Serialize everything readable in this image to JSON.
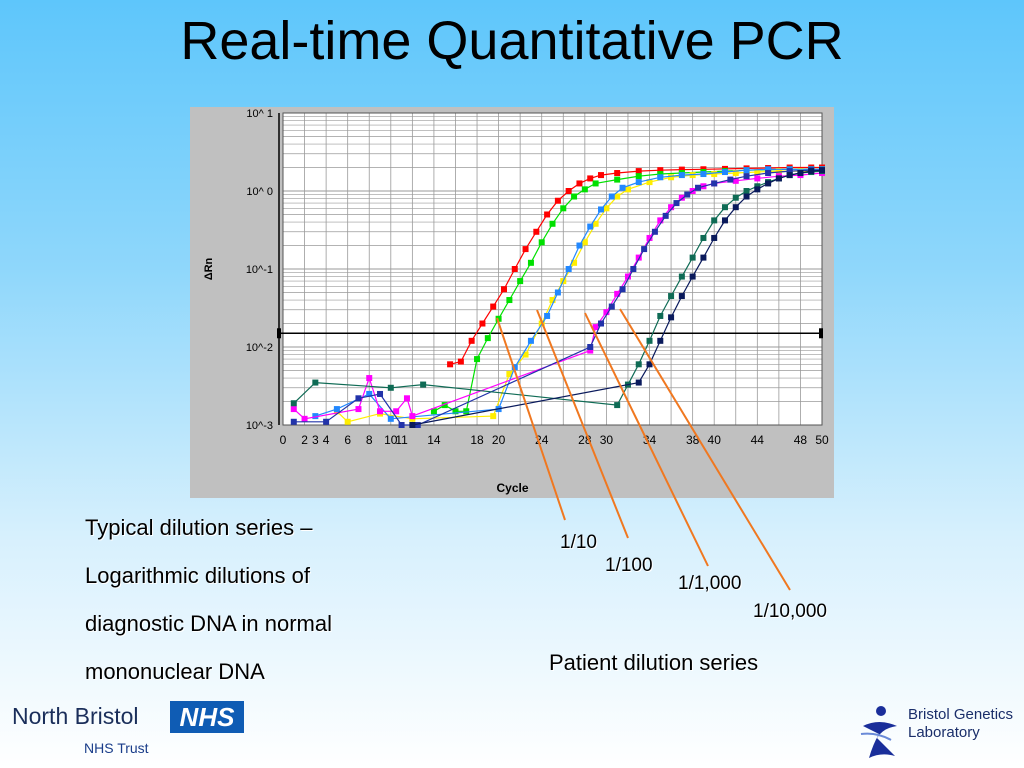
{
  "slide": {
    "title": "Real-time Quantitative PCR",
    "caption_lines": [
      "Typical dilution series –",
      "Logarithmic dilutions of",
      "diagnostic DNA in normal",
      "mononuclear DNA"
    ],
    "dilution_labels": [
      "1/10",
      "1/100",
      "1/1,000",
      "1/10,000"
    ],
    "patient_label": "Patient dilution series",
    "footer": {
      "left_name": "North Bristol",
      "left_badge": "NHS",
      "left_sub": "NHS Trust",
      "right_line1": "Bristol Genetics",
      "right_line2": "Laboratory"
    }
  },
  "colors": {
    "leader_lines": "#f07820",
    "plot_background": "#ffffff",
    "panel_background": "#c0c0c0"
  },
  "chart_data": {
    "type": "line",
    "title": "",
    "xlabel": "Cycle",
    "ylabel": "ΔRn",
    "x_ticks": [
      0,
      2,
      3,
      4,
      6,
      8,
      10,
      11,
      14,
      18,
      20,
      24,
      28,
      30,
      34,
      38,
      40,
      44,
      48,
      50
    ],
    "y_ticks": [
      "10^-3",
      "10^-2",
      "10^-1",
      "10^ 0",
      "10^ 1"
    ],
    "y_scale": "log",
    "xlim": [
      0,
      50
    ],
    "ylim": [
      0.001,
      10
    ],
    "grid": true,
    "threshold": 0.015,
    "series": [
      {
        "color": "#ff0000",
        "points": [
          [
            15.5,
            0.006
          ],
          [
            16.5,
            0.0065
          ],
          [
            17.5,
            0.012
          ],
          [
            18.5,
            0.02
          ],
          [
            19.5,
            0.033
          ],
          [
            20.5,
            0.055
          ],
          [
            21.5,
            0.1
          ],
          [
            22.5,
            0.18
          ],
          [
            23.5,
            0.3
          ],
          [
            24.5,
            0.5
          ],
          [
            25.5,
            0.75
          ],
          [
            26.5,
            1.0
          ],
          [
            27.5,
            1.25
          ],
          [
            28.5,
            1.45
          ],
          [
            29.5,
            1.6
          ],
          [
            31,
            1.7
          ],
          [
            33,
            1.8
          ],
          [
            35,
            1.85
          ],
          [
            37,
            1.88
          ],
          [
            39,
            1.9
          ],
          [
            41,
            1.92
          ],
          [
            43,
            1.95
          ],
          [
            45,
            1.97
          ],
          [
            47,
            2.0
          ],
          [
            49,
            2.0
          ],
          [
            50,
            2.0
          ]
        ]
      },
      {
        "color": "#00e000",
        "points": [
          [
            14,
            0.0015
          ],
          [
            15,
            0.0018
          ],
          [
            16,
            0.0015
          ],
          [
            17,
            0.0015
          ],
          [
            18,
            0.007
          ],
          [
            19,
            0.013
          ],
          [
            20,
            0.023
          ],
          [
            21,
            0.04
          ],
          [
            22,
            0.07
          ],
          [
            23,
            0.12
          ],
          [
            24,
            0.22
          ],
          [
            25,
            0.38
          ],
          [
            26,
            0.6
          ],
          [
            27,
            0.85
          ],
          [
            28,
            1.05
          ],
          [
            29,
            1.25
          ],
          [
            31,
            1.4
          ],
          [
            33,
            1.55
          ],
          [
            35,
            1.65
          ],
          [
            37,
            1.7
          ],
          [
            39,
            1.75
          ],
          [
            41,
            1.8
          ],
          [
            43,
            1.85
          ],
          [
            45,
            1.87
          ],
          [
            47,
            1.9
          ],
          [
            49,
            1.9
          ],
          [
            50,
            1.9
          ]
        ]
      },
      {
        "color": "#ffee00",
        "points": [
          [
            5,
            0.0015
          ],
          [
            6,
            0.0011
          ],
          [
            9,
            0.0014
          ],
          [
            12,
            0.0012
          ],
          [
            19.5,
            0.0013
          ],
          [
            21,
            0.0045
          ],
          [
            22.5,
            0.008
          ],
          [
            24,
            0.02
          ],
          [
            25,
            0.04
          ],
          [
            26,
            0.07
          ],
          [
            27,
            0.12
          ],
          [
            28,
            0.22
          ],
          [
            29,
            0.38
          ],
          [
            30,
            0.6
          ],
          [
            31,
            0.85
          ],
          [
            32,
            1.05
          ],
          [
            34,
            1.3
          ],
          [
            36,
            1.5
          ],
          [
            38,
            1.6
          ],
          [
            40,
            1.65
          ],
          [
            42,
            1.7
          ],
          [
            44,
            1.75
          ],
          [
            46,
            1.8
          ],
          [
            48,
            1.8
          ],
          [
            50,
            1.8
          ]
        ]
      },
      {
        "color": "#2288ff",
        "points": [
          [
            3,
            0.0013
          ],
          [
            5,
            0.0016
          ],
          [
            8,
            0.0025
          ],
          [
            10,
            0.0012
          ],
          [
            20,
            0.0016
          ],
          [
            21.5,
            0.0055
          ],
          [
            23,
            0.012
          ],
          [
            24.5,
            0.025
          ],
          [
            25.5,
            0.05
          ],
          [
            26.5,
            0.1
          ],
          [
            27.5,
            0.2
          ],
          [
            28.5,
            0.35
          ],
          [
            29.5,
            0.58
          ],
          [
            30.5,
            0.85
          ],
          [
            31.5,
            1.1
          ],
          [
            33,
            1.3
          ],
          [
            35,
            1.5
          ],
          [
            37,
            1.6
          ],
          [
            39,
            1.65
          ],
          [
            41,
            1.75
          ],
          [
            43,
            1.85
          ],
          [
            45,
            1.9
          ],
          [
            47,
            1.9
          ],
          [
            49,
            1.9
          ],
          [
            50,
            1.9
          ]
        ]
      },
      {
        "color": "#ff00ff",
        "points": [
          [
            1,
            0.0016
          ],
          [
            2,
            0.0012
          ],
          [
            7,
            0.0016
          ],
          [
            8,
            0.004
          ],
          [
            9,
            0.0015
          ],
          [
            10.5,
            0.0015
          ],
          [
            11.5,
            0.0022
          ],
          [
            12,
            0.0013
          ],
          [
            28.5,
            0.009
          ],
          [
            29,
            0.018
          ],
          [
            30,
            0.028
          ],
          [
            31,
            0.048
          ],
          [
            32,
            0.08
          ],
          [
            33,
            0.14
          ],
          [
            34,
            0.25
          ],
          [
            35,
            0.42
          ],
          [
            36,
            0.62
          ],
          [
            37,
            0.82
          ],
          [
            38,
            1.0
          ],
          [
            39,
            1.15
          ],
          [
            40,
            1.25
          ],
          [
            42,
            1.35
          ],
          [
            44,
            1.45
          ],
          [
            46,
            1.55
          ],
          [
            48,
            1.6
          ],
          [
            50,
            1.7
          ]
        ]
      },
      {
        "color": "#2233aa",
        "points": [
          [
            1,
            0.0011
          ],
          [
            4,
            0.0011
          ],
          [
            7,
            0.0022
          ],
          [
            9,
            0.0025
          ],
          [
            11,
            0.001
          ],
          [
            12.5,
            0.001
          ],
          [
            28.5,
            0.01
          ],
          [
            29.5,
            0.02
          ],
          [
            30.5,
            0.033
          ],
          [
            31.5,
            0.055
          ],
          [
            32.5,
            0.1
          ],
          [
            33.5,
            0.18
          ],
          [
            34.5,
            0.3
          ],
          [
            35.5,
            0.48
          ],
          [
            36.5,
            0.7
          ],
          [
            37.5,
            0.9
          ],
          [
            38.5,
            1.1
          ],
          [
            40,
            1.25
          ],
          [
            41.5,
            1.4
          ],
          [
            43,
            1.55
          ],
          [
            45,
            1.7
          ],
          [
            47,
            1.8
          ],
          [
            49,
            1.85
          ],
          [
            50,
            1.85
          ]
        ]
      },
      {
        "color": "#0f6b55",
        "points": [
          [
            1,
            0.0019
          ],
          [
            3,
            0.0035
          ],
          [
            10,
            0.003
          ],
          [
            13,
            0.0033
          ],
          [
            31,
            0.0018
          ],
          [
            32,
            0.0033
          ],
          [
            33,
            0.006
          ],
          [
            34,
            0.012
          ],
          [
            35,
            0.025
          ],
          [
            36,
            0.045
          ],
          [
            37,
            0.08
          ],
          [
            38,
            0.14
          ],
          [
            39,
            0.25
          ],
          [
            40,
            0.42
          ],
          [
            41,
            0.62
          ],
          [
            42,
            0.82
          ],
          [
            43,
            1.0
          ],
          [
            44,
            1.15
          ],
          [
            45,
            1.3
          ],
          [
            46,
            1.45
          ],
          [
            47,
            1.6
          ],
          [
            48,
            1.7
          ],
          [
            49,
            1.75
          ],
          [
            50,
            1.8
          ]
        ]
      },
      {
        "color": "#0a1a5c",
        "points": [
          [
            12,
            0.001
          ],
          [
            33,
            0.0035
          ],
          [
            34,
            0.006
          ],
          [
            35,
            0.012
          ],
          [
            36,
            0.024
          ],
          [
            37,
            0.045
          ],
          [
            38,
            0.08
          ],
          [
            39,
            0.14
          ],
          [
            40,
            0.25
          ],
          [
            41,
            0.42
          ],
          [
            42,
            0.62
          ],
          [
            43,
            0.85
          ],
          [
            44,
            1.05
          ],
          [
            45,
            1.25
          ],
          [
            46,
            1.45
          ],
          [
            47,
            1.6
          ],
          [
            48,
            1.7
          ],
          [
            49,
            1.8
          ],
          [
            50,
            1.85
          ]
        ]
      }
    ]
  }
}
